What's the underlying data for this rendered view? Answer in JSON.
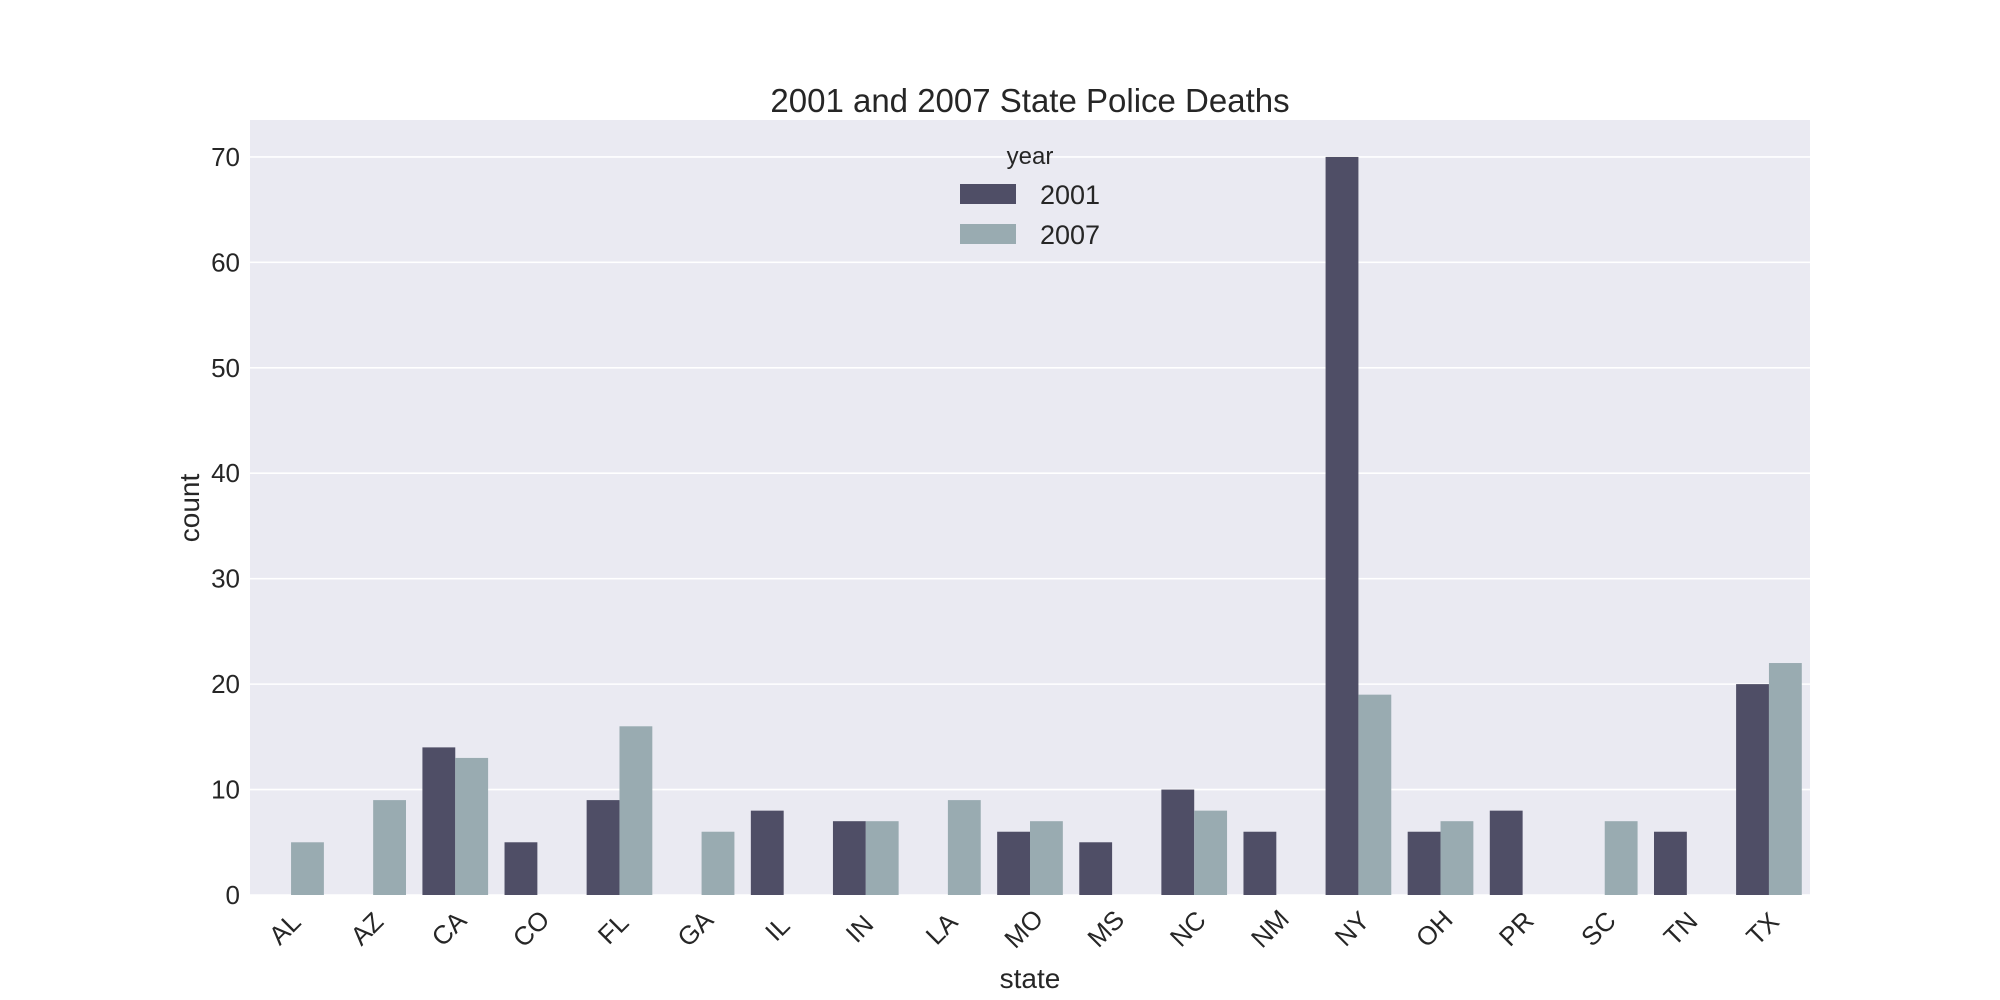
{
  "chart_data": {
    "type": "bar",
    "title": "2001 and 2007 State Police Deaths",
    "xlabel": "state",
    "ylabel": "count",
    "ylim": [
      0,
      73.5
    ],
    "yticks": [
      0,
      10,
      20,
      30,
      40,
      50,
      60,
      70
    ],
    "grid": true,
    "categories": [
      "AL",
      "AZ",
      "CA",
      "CO",
      "FL",
      "GA",
      "IL",
      "IN",
      "LA",
      "MO",
      "MS",
      "NC",
      "NM",
      "NY",
      "OH",
      "PR",
      "SC",
      "TN",
      "TX"
    ],
    "legend": {
      "title": "year",
      "placement": "upper center"
    },
    "series": [
      {
        "name": "2001",
        "color": "#4f4e66",
        "values": [
          null,
          null,
          14,
          5,
          9,
          null,
          8,
          7,
          null,
          6,
          5,
          10,
          6,
          70,
          6,
          8,
          null,
          6,
          20
        ]
      },
      {
        "name": "2007",
        "color": "#99abb1",
        "values": [
          5,
          9,
          13,
          null,
          16,
          6,
          null,
          7,
          9,
          7,
          null,
          8,
          null,
          19,
          7,
          null,
          7,
          null,
          22
        ]
      }
    ]
  }
}
